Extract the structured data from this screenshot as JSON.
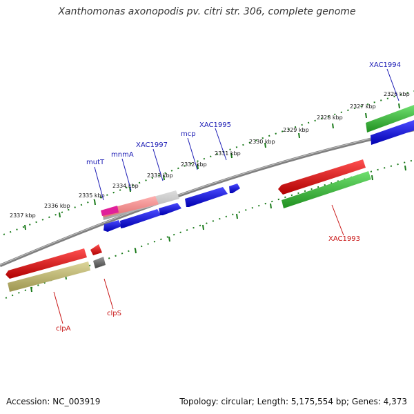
{
  "title": "Xanthomonas axonopodis pv. citri str. 306, complete genome",
  "footer": {
    "accession": "Accession: NC_003919",
    "summary": "Topology: circular; Length: 5,175,554 bp; Genes: 4,373"
  },
  "kbp_labels": [
    "2326 kbp",
    "2327 kbp",
    "2328 kbp",
    "2329 kbp",
    "2330 kbp",
    "2331 kbp",
    "2332 kbp",
    "2333 kbp",
    "2334 kbp",
    "2335 kbp",
    "2336 kbp",
    "2337 kbp"
  ],
  "gene_labels": {
    "XAC1994": "XAC1994",
    "XAC1995": "XAC1995",
    "mcp": "mcp",
    "XAC1997": "XAC1997",
    "mnmA": "mnmA",
    "mutT": "mutT",
    "XAC1993": "XAC1993",
    "clpS": "clpS",
    "clpA": "clpA"
  },
  "colors": {
    "backbone": "#808080",
    "tick": "#1a7a1a",
    "forward_label": "#1a1ab4",
    "reverse_label": "#c81414",
    "blue": "#1010e0",
    "red": "#e00000",
    "green": "#30c030",
    "khaki": "#bdb76b",
    "magenta": "#e0209a",
    "grey": "#808080"
  }
}
